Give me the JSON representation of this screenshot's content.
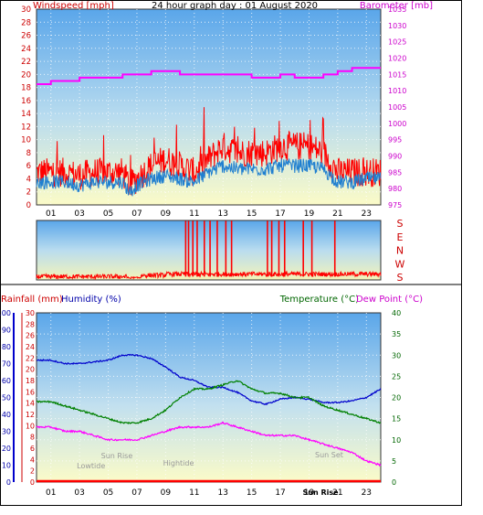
{
  "frame": {
    "border_color": "#000000"
  },
  "chart_data": [
    {
      "type": "line",
      "title": "24 hour graph day : 01 August 2020",
      "ylabel_left": "Windspeed [mph]",
      "ylabel_right": "Barometer [mb]",
      "ylim": [
        0,
        30
      ],
      "y2lim": [
        975,
        1035
      ],
      "yticks": [
        "0",
        "2",
        "4",
        "6",
        "8",
        "10",
        "12",
        "14",
        "16",
        "18",
        "20",
        "22",
        "24",
        "26",
        "28",
        "30"
      ],
      "y2ticks": [
        "975",
        "980",
        "985",
        "990",
        "995",
        "1000",
        "1005",
        "1010",
        "1015",
        "1020",
        "1025",
        "1030",
        "1035"
      ],
      "xticks": [
        "01",
        "03",
        "05",
        "07",
        "09",
        "11",
        "13",
        "15",
        "17",
        "19",
        "21",
        "23"
      ],
      "xlim": [
        0,
        24
      ],
      "colors": {
        "gust": "#ff0000",
        "wind": "#1f7fd0",
        "barometer": "#ff00ff",
        "ylabel_left": "#cc0000",
        "ylabel_right": "#cc00cc"
      },
      "series": [
        {
          "key": "gust",
          "x": [
            0,
            1,
            2,
            3,
            4,
            5,
            6,
            6.5,
            7,
            8,
            9,
            10,
            11,
            12,
            13,
            14,
            15,
            16,
            17,
            18,
            19,
            20,
            21,
            22,
            23,
            24
          ],
          "values": [
            5,
            5,
            5,
            4.5,
            5,
            5,
            5,
            3,
            4,
            6,
            7,
            6,
            5,
            7,
            9,
            8,
            8,
            8,
            9,
            9,
            9,
            8,
            5,
            5,
            5,
            5
          ]
        },
        {
          "key": "wind",
          "x": [
            0,
            1,
            2,
            3,
            4,
            5,
            6,
            6.5,
            7,
            8,
            9,
            10,
            11,
            12,
            13,
            14,
            15,
            16,
            17,
            18,
            19,
            20,
            21,
            22,
            23,
            24
          ],
          "values": [
            3.5,
            3.5,
            3.5,
            3,
            3.5,
            3.5,
            3.5,
            2,
            3,
            4,
            4.5,
            4,
            3.5,
            5,
            6,
            5.5,
            5.5,
            5.5,
            6,
            6,
            6,
            5.5,
            3.5,
            3.5,
            4,
            4
          ]
        },
        {
          "key": "barometer",
          "x": [
            0,
            1,
            2,
            3,
            4,
            5,
            6,
            7,
            8,
            9,
            10,
            11,
            12,
            13,
            14,
            15,
            16,
            17,
            18,
            19,
            20,
            21,
            22,
            23,
            24
          ],
          "values": [
            1012,
            1013,
            1013,
            1014,
            1014,
            1014,
            1015,
            1015,
            1016,
            1016,
            1015,
            1015,
            1015,
            1015,
            1015,
            1014,
            1014,
            1015,
            1014,
            1014,
            1015,
            1016,
            1017,
            1017,
            1017
          ]
        }
      ]
    },
    {
      "type": "scatter",
      "ylabels": [
        "S",
        "E",
        "N",
        "W",
        "S"
      ],
      "colors": {
        "direction": "#ff0000",
        "ylabels": "#cc0000"
      },
      "baseline_note": "S = 0/360, E = 90, N = 180, W = 270"
    },
    {
      "type": "line",
      "ylabel_rain": "Rainfall (mm)",
      "ylabel_humidity": "Humidity (%)",
      "ylabel_temp": "Temperature (°C)",
      "ylabel_dew": "Dew Point (°C)",
      "rain_ticks": [
        "0",
        "2",
        "4",
        "6",
        "8",
        "10",
        "12",
        "14",
        "16",
        "18",
        "20",
        "22",
        "24",
        "26",
        "28",
        "30"
      ],
      "humidity_ticks": [
        "0",
        "10",
        "20",
        "30",
        "40",
        "50",
        "60",
        "70",
        "80",
        "90",
        "100"
      ],
      "temp_ticks": [
        "0",
        "5",
        "10",
        "15",
        "20",
        "25",
        "30",
        "35",
        "40"
      ],
      "xticks": [
        "01",
        "03",
        "05",
        "07",
        "09",
        "11",
        "13",
        "15",
        "17",
        "19",
        "21",
        "23"
      ],
      "annotations": [
        {
          "text": "Lowtide",
          "x": 3.8
        },
        {
          "text": "Sun Rise",
          "x": 5.6
        },
        {
          "text": "Hightide",
          "x": 9.9
        },
        {
          "text": "Sun Set",
          "x": 20.4
        },
        {
          "text": "Sun Rise",
          "x": 19.8
        }
      ],
      "colors": {
        "humidity": "#0000cc",
        "temperature": "#008000",
        "dewpoint": "#ff00ff",
        "rain": "#ff0000",
        "rain_label": "#cc0000",
        "humidity_label": "#0000aa",
        "temp_label": "#006600",
        "dew_label": "#cc00cc"
      },
      "series": [
        {
          "key": "humidity",
          "x": [
            0,
            1,
            2,
            3,
            4,
            5,
            6,
            7,
            8,
            9,
            10,
            11,
            12,
            13,
            14,
            15,
            16,
            17,
            18,
            19,
            20,
            21,
            22,
            23,
            24
          ],
          "values": [
            72,
            72,
            70,
            70,
            71,
            72,
            75,
            75,
            73,
            68,
            62,
            60,
            56,
            56,
            53,
            48,
            46,
            49,
            50,
            49,
            47,
            47,
            48,
            50,
            55
          ]
        },
        {
          "key": "temperature",
          "x": [
            0,
            1,
            2,
            3,
            4,
            5,
            6,
            7,
            8,
            9,
            10,
            11,
            12,
            13,
            14,
            15,
            16,
            17,
            18,
            19,
            20,
            21,
            22,
            23,
            24
          ],
          "values": [
            19,
            19,
            18,
            17,
            16,
            15,
            14,
            14,
            15,
            17,
            20,
            22,
            22,
            23,
            24,
            22,
            21,
            21,
            20,
            20,
            18,
            17,
            16,
            15,
            14
          ]
        },
        {
          "key": "dewpoint",
          "x": [
            0,
            1,
            2,
            3,
            4,
            5,
            6,
            7,
            8,
            9,
            10,
            11,
            12,
            13,
            14,
            15,
            16,
            17,
            18,
            19,
            20,
            21,
            22,
            23,
            24
          ],
          "values": [
            13,
            13,
            12,
            12,
            11,
            10,
            10,
            10,
            11,
            12,
            13,
            13,
            13,
            14,
            13,
            12,
            11,
            11,
            11,
            10,
            9,
            8,
            7,
            5,
            4
          ]
        },
        {
          "key": "rain",
          "x": [
            0,
            24
          ],
          "values": [
            0,
            0
          ]
        }
      ]
    }
  ]
}
